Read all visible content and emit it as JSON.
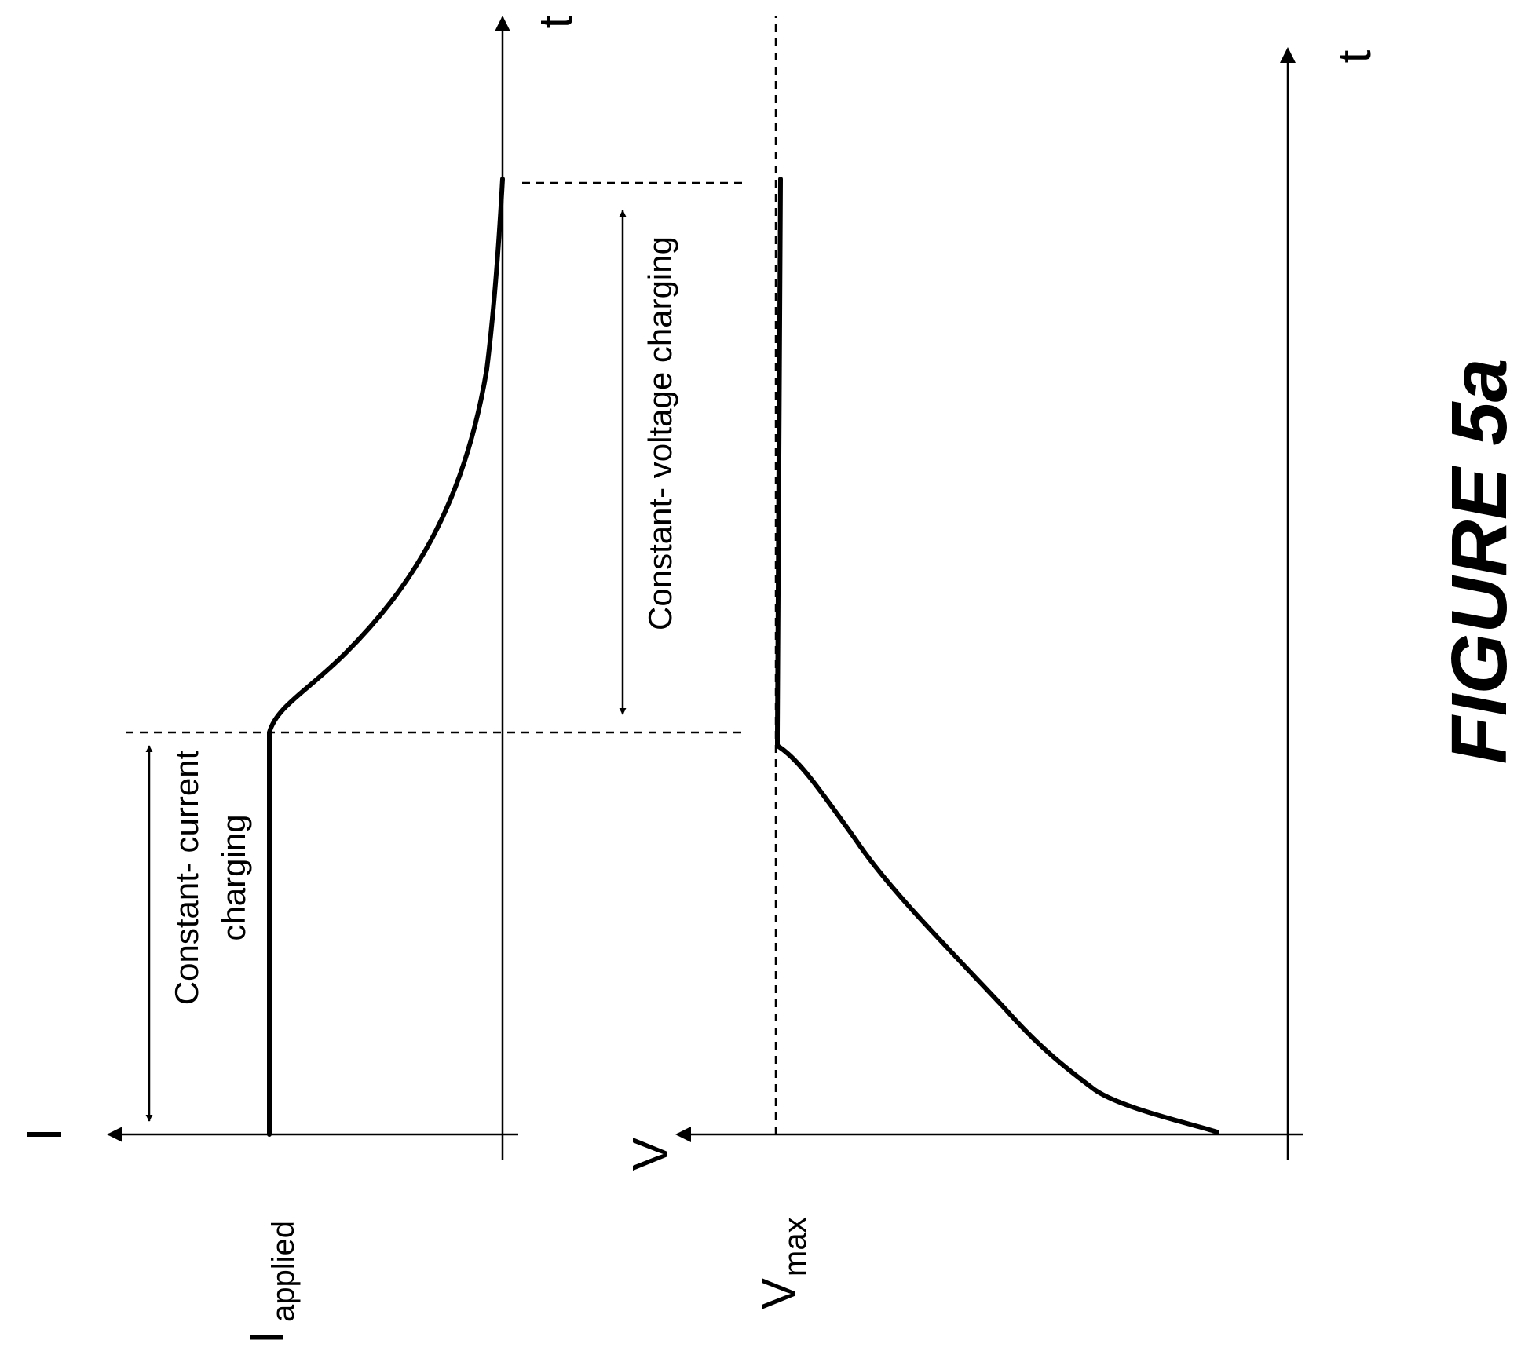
{
  "figure": {
    "caption": "FIGURE 5a"
  },
  "current_plot": {
    "y_axis_label": "I",
    "x_axis_label": "t",
    "level_label_main": "I",
    "level_label_sub": "applied",
    "phase_cc_line1": "Constant- current",
    "phase_cc_line2": "charging",
    "phase_cv_label": "Constant- voltage charging"
  },
  "voltage_plot": {
    "y_axis_label": "V",
    "x_axis_label": "t",
    "level_label_main": "V",
    "level_label_sub": "max"
  },
  "colors": {
    "ink": "#000000",
    "background": "#ffffff"
  }
}
